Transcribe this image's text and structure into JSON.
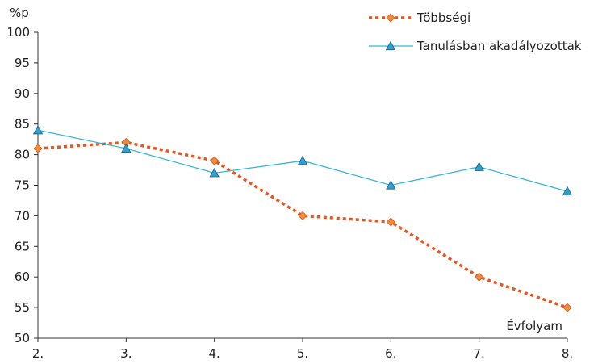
{
  "chart_data": {
    "type": "line",
    "title": "",
    "xlabel": "Évfolyam",
    "ylabel": "%p",
    "categories": [
      "2.",
      "3.",
      "4.",
      "5.",
      "6.",
      "7.",
      "8."
    ],
    "ylim": [
      50,
      100
    ],
    "yticks": [
      50,
      55,
      60,
      65,
      70,
      75,
      80,
      85,
      90,
      95,
      100
    ],
    "grid": false,
    "legend_position": "top-right",
    "series": [
      {
        "name": "Többségi",
        "values": [
          81,
          82,
          79,
          70,
          69,
          60,
          55
        ],
        "color": "#e8541e",
        "marker_fill": "#f08a3c",
        "line_style": "dotted",
        "marker": "diamond"
      },
      {
        "name": "Tanulásban akadályozottak",
        "values": [
          84,
          81,
          77,
          79,
          75,
          78,
          74
        ],
        "color": "#35b7d6",
        "marker_fill": "#2e9fd0",
        "line_style": "solid",
        "marker": "triangle"
      }
    ]
  }
}
